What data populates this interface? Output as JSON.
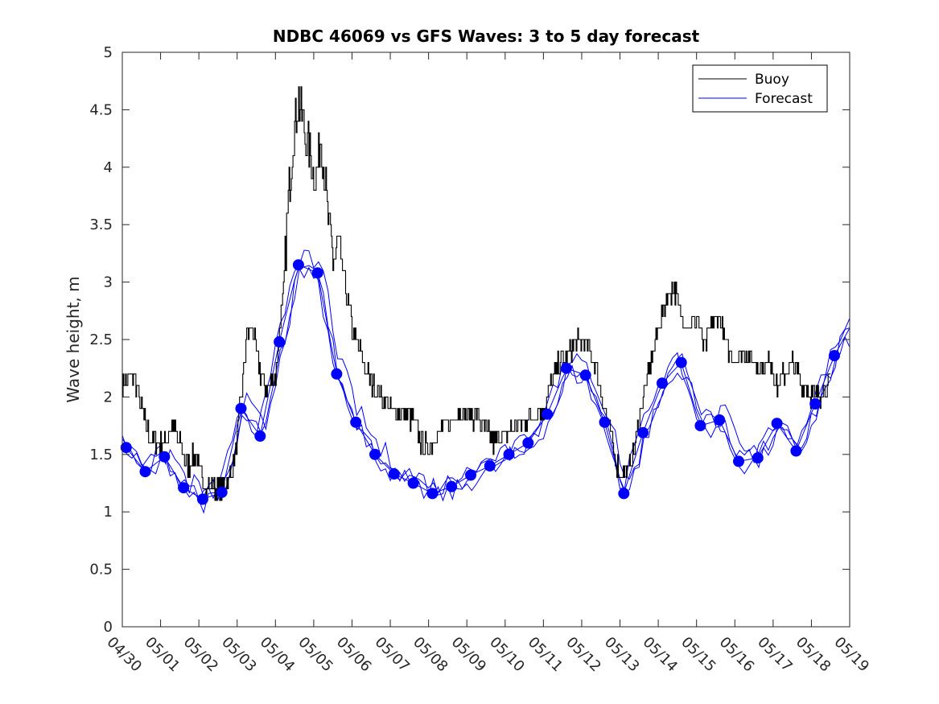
{
  "chart_data": {
    "type": "line",
    "title": "NDBC 46069 vs GFS Waves: 3 to 5 day forecast",
    "xlabel": "",
    "ylabel": "Wave height, m",
    "ylim": [
      0,
      5
    ],
    "xlim": [
      0,
      19
    ],
    "x_unit": "days",
    "yticks": [
      "0",
      "0.5",
      "1",
      "1.5",
      "2",
      "2.5",
      "3",
      "3.5",
      "4",
      "4.5",
      "5"
    ],
    "xticks": [
      "04/30",
      "05/01",
      "05/02",
      "05/03",
      "05/04",
      "05/05",
      "05/06",
      "05/07",
      "05/08",
      "05/09",
      "05/10",
      "05/11",
      "05/12",
      "05/13",
      "05/14",
      "05/15",
      "05/16",
      "05/17",
      "05/18",
      "05/19"
    ],
    "grid": false,
    "legend": {
      "placement": "top-right",
      "entries": [
        {
          "label": "Buoy",
          "color": "#000000"
        },
        {
          "label": "Forecast",
          "color": "#0000ff"
        }
      ]
    },
    "colors": {
      "buoy": "#000000",
      "forecast": "#0000ff",
      "marker": "#0000ff"
    },
    "buoy_anchors": [
      [
        0.0,
        2.1
      ],
      [
        0.3,
        2.2
      ],
      [
        0.5,
        1.9
      ],
      [
        0.7,
        1.65
      ],
      [
        0.9,
        1.6
      ],
      [
        1.1,
        1.6
      ],
      [
        1.3,
        1.75
      ],
      [
        1.5,
        1.6
      ],
      [
        1.7,
        1.4
      ],
      [
        1.9,
        1.5
      ],
      [
        2.1,
        1.25
      ],
      [
        2.3,
        1.2
      ],
      [
        2.6,
        1.2
      ],
      [
        2.8,
        1.3
      ],
      [
        2.95,
        1.5
      ],
      [
        3.1,
        2.0
      ],
      [
        3.25,
        2.55
      ],
      [
        3.4,
        2.6
      ],
      [
        3.6,
        2.2
      ],
      [
        3.8,
        2.05
      ],
      [
        4.0,
        2.2
      ],
      [
        4.2,
        2.9
      ],
      [
        4.35,
        3.8
      ],
      [
        4.5,
        4.4
      ],
      [
        4.6,
        4.6
      ],
      [
        4.75,
        4.3
      ],
      [
        4.9,
        4.1
      ],
      [
        5.05,
        3.9
      ],
      [
        5.2,
        4.3
      ],
      [
        5.35,
        3.6
      ],
      [
        5.5,
        3.2
      ],
      [
        5.65,
        3.3
      ],
      [
        5.8,
        3.0
      ],
      [
        6.0,
        2.6
      ],
      [
        6.2,
        2.4
      ],
      [
        6.4,
        2.2
      ],
      [
        6.6,
        2.05
      ],
      [
        6.8,
        2.0
      ],
      [
        7.0,
        1.9
      ],
      [
        7.2,
        1.9
      ],
      [
        7.4,
        1.85
      ],
      [
        7.6,
        1.8
      ],
      [
        7.8,
        1.6
      ],
      [
        8.0,
        1.55
      ],
      [
        8.2,
        1.65
      ],
      [
        8.4,
        1.75
      ],
      [
        8.6,
        1.8
      ],
      [
        8.8,
        1.9
      ],
      [
        9.0,
        1.85
      ],
      [
        9.3,
        1.8
      ],
      [
        9.5,
        1.7
      ],
      [
        9.7,
        1.6
      ],
      [
        9.9,
        1.65
      ],
      [
        10.1,
        1.7
      ],
      [
        10.3,
        1.75
      ],
      [
        10.5,
        1.8
      ],
      [
        10.8,
        1.85
      ],
      [
        11.0,
        1.9
      ],
      [
        11.2,
        2.1
      ],
      [
        11.4,
        2.3
      ],
      [
        11.6,
        2.35
      ],
      [
        11.8,
        2.45
      ],
      [
        12.0,
        2.5
      ],
      [
        12.2,
        2.4
      ],
      [
        12.4,
        2.2
      ],
      [
        12.6,
        1.9
      ],
      [
        12.8,
        1.6
      ],
      [
        13.0,
        1.3
      ],
      [
        13.2,
        1.35
      ],
      [
        13.4,
        1.6
      ],
      [
        13.6,
        2.0
      ],
      [
        13.8,
        2.3
      ],
      [
        14.0,
        2.6
      ],
      [
        14.2,
        2.85
      ],
      [
        14.4,
        2.95
      ],
      [
        14.6,
        2.7
      ],
      [
        14.8,
        2.6
      ],
      [
        15.0,
        2.7
      ],
      [
        15.2,
        2.4
      ],
      [
        15.4,
        2.65
      ],
      [
        15.6,
        2.7
      ],
      [
        15.8,
        2.4
      ],
      [
        16.0,
        2.35
      ],
      [
        16.3,
        2.4
      ],
      [
        16.5,
        2.3
      ],
      [
        16.7,
        2.25
      ],
      [
        16.9,
        2.35
      ],
      [
        17.1,
        2.1
      ],
      [
        17.3,
        2.2
      ],
      [
        17.5,
        2.3
      ],
      [
        17.7,
        2.15
      ],
      [
        17.9,
        2.05
      ],
      [
        18.1,
        2.0
      ],
      [
        18.3,
        2.05
      ],
      [
        18.5,
        2.1
      ]
    ],
    "forecast_markers": [
      {
        "x": 0.1,
        "y": 1.56
      },
      {
        "x": 0.6,
        "y": 1.35
      },
      {
        "x": 1.1,
        "y": 1.48
      },
      {
        "x": 1.6,
        "y": 1.21
      },
      {
        "x": 2.1,
        "y": 1.11
      },
      {
        "x": 2.6,
        "y": 1.17
      },
      {
        "x": 3.1,
        "y": 1.9
      },
      {
        "x": 3.6,
        "y": 1.66
      },
      {
        "x": 4.1,
        "y": 2.48
      },
      {
        "x": 4.6,
        "y": 3.15
      },
      {
        "x": 5.1,
        "y": 3.08
      },
      {
        "x": 5.6,
        "y": 2.2
      },
      {
        "x": 6.1,
        "y": 1.78
      },
      {
        "x": 6.6,
        "y": 1.5
      },
      {
        "x": 7.1,
        "y": 1.33
      },
      {
        "x": 7.6,
        "y": 1.25
      },
      {
        "x": 8.1,
        "y": 1.16
      },
      {
        "x": 8.6,
        "y": 1.22
      },
      {
        "x": 9.1,
        "y": 1.32
      },
      {
        "x": 9.6,
        "y": 1.4
      },
      {
        "x": 10.1,
        "y": 1.5
      },
      {
        "x": 10.6,
        "y": 1.6
      },
      {
        "x": 11.1,
        "y": 1.85
      },
      {
        "x": 11.6,
        "y": 2.25
      },
      {
        "x": 12.1,
        "y": 2.19
      },
      {
        "x": 12.6,
        "y": 1.78
      },
      {
        "x": 13.1,
        "y": 1.16
      },
      {
        "x": 13.6,
        "y": 1.69
      },
      {
        "x": 14.1,
        "y": 2.12
      },
      {
        "x": 14.6,
        "y": 2.3
      },
      {
        "x": 15.1,
        "y": 1.75
      },
      {
        "x": 15.6,
        "y": 1.8
      },
      {
        "x": 16.1,
        "y": 1.44
      },
      {
        "x": 16.6,
        "y": 1.47
      },
      {
        "x": 17.1,
        "y": 1.77
      },
      {
        "x": 17.6,
        "y": 1.53
      },
      {
        "x": 18.1,
        "y": 1.94
      },
      {
        "x": 18.6,
        "y": 2.36
      }
    ],
    "forecast_extra": [
      {
        "x": 0.0,
        "y": 1.55
      },
      {
        "x": 19.0,
        "y": 2.6
      }
    ]
  }
}
